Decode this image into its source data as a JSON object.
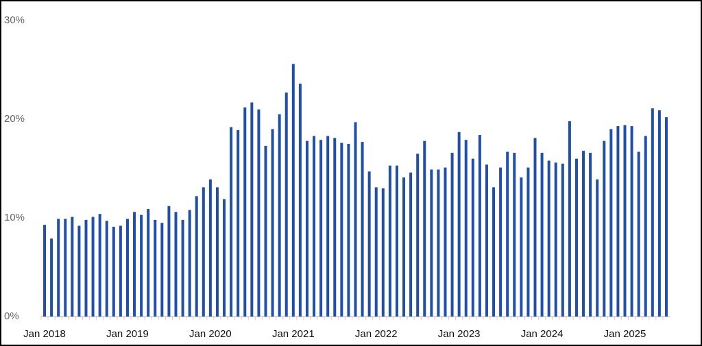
{
  "chart_data": {
    "type": "bar",
    "categories": [
      "Jan 2018",
      null,
      null,
      null,
      null,
      null,
      null,
      null,
      null,
      null,
      null,
      null,
      "Jan 2019",
      null,
      null,
      null,
      null,
      null,
      null,
      null,
      null,
      null,
      null,
      null,
      "Jan 2020",
      null,
      null,
      null,
      null,
      null,
      null,
      null,
      null,
      null,
      null,
      null,
      "Jan 2021",
      null,
      null,
      null,
      null,
      null,
      null,
      null,
      null,
      null,
      null,
      null,
      "Jan 2022",
      null,
      null,
      null,
      null,
      null,
      null,
      null,
      null,
      null,
      null,
      null,
      "Jan 2023",
      null,
      null,
      null,
      null,
      null,
      null,
      null,
      null,
      null,
      null,
      null,
      "Jan 2024",
      null,
      null,
      null,
      null,
      null,
      null,
      null,
      null,
      null,
      null,
      null,
      "Jan 2025",
      null,
      null,
      null,
      null,
      null,
      null
    ],
    "values": [
      9.3,
      7.9,
      9.9,
      9.9,
      10.1,
      9.2,
      9.8,
      10.1,
      10.4,
      9.7,
      9.1,
      9.2,
      9.9,
      10.6,
      10.3,
      10.9,
      9.8,
      9.5,
      11.2,
      10.6,
      9.8,
      10.8,
      12.2,
      13.1,
      13.9,
      13.1,
      11.9,
      19.2,
      18.9,
      21.2,
      21.7,
      21.0,
      17.3,
      19.0,
      20.5,
      22.7,
      25.6,
      23.6,
      17.8,
      18.3,
      17.9,
      18.3,
      18.1,
      17.6,
      17.5,
      19.7,
      17.7,
      14.7,
      13.1,
      13.0,
      15.3,
      15.3,
      14.1,
      14.6,
      16.5,
      17.8,
      14.9,
      14.9,
      15.1,
      16.6,
      18.7,
      17.9,
      16.0,
      18.4,
      15.4,
      13.1,
      15.1,
      16.7,
      16.6,
      14.1,
      15.1,
      18.1,
      16.6,
      15.8,
      15.6,
      15.5,
      19.8,
      16.0,
      16.8,
      16.6,
      13.9,
      17.8,
      19.0,
      19.3,
      19.4,
      19.3,
      16.7,
      18.3,
      21.1,
      20.9,
      20.2
    ],
    "color": "#1f4fa8",
    "ylim": [
      0,
      30
    ],
    "yticks": [
      {
        "value": 0,
        "label": "0%"
      },
      {
        "value": 10,
        "label": "10%"
      },
      {
        "value": 20,
        "label": "20%"
      },
      {
        "value": 30,
        "label": "30%"
      }
    ],
    "grid": false
  }
}
